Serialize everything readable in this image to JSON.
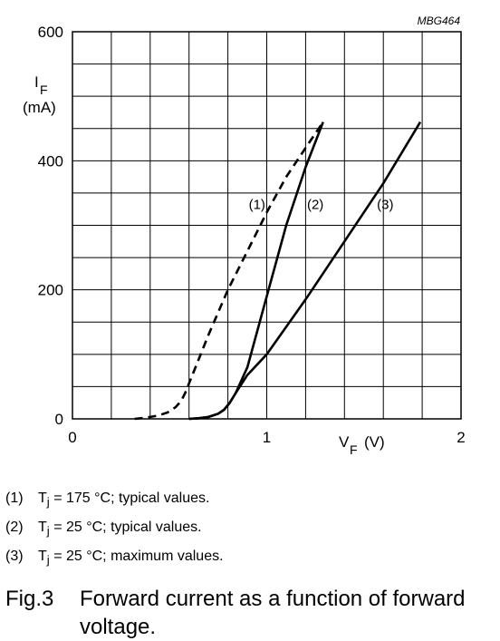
{
  "chart_data": {
    "type": "line",
    "code": "MBG464",
    "x_ticks": [
      "0",
      "1",
      "2"
    ],
    "y_ticks": [
      "0",
      "200",
      "400",
      "600"
    ],
    "xlim": [
      0,
      2
    ],
    "ylim": [
      0,
      600
    ],
    "x_grid_step": 0.2,
    "y_grid_step": 50,
    "grid": true,
    "ylabel": {
      "main": "I",
      "sub": "F",
      "unit": "(mA)"
    },
    "xlabel": {
      "main": "V",
      "sub": "F",
      "unit": "(V)"
    },
    "series": [
      {
        "name": "(1)",
        "style": "dashed",
        "x": [
          0.32,
          0.38,
          0.44,
          0.49,
          0.53,
          0.56,
          0.58,
          0.62,
          0.7,
          0.8,
          0.9,
          1.0,
          1.1,
          1.2,
          1.29
        ],
        "y": [
          0,
          2,
          5,
          10,
          18,
          28,
          40,
          70,
          130,
          200,
          260,
          320,
          375,
          420,
          460
        ]
      },
      {
        "name": "(2)",
        "style": "solid",
        "x": [
          0.6,
          0.65,
          0.7,
          0.75,
          0.78,
          0.81,
          0.84,
          0.9,
          1.0,
          1.1,
          1.2,
          1.29
        ],
        "y": [
          0,
          1,
          3,
          8,
          14,
          25,
          40,
          80,
          190,
          300,
          390,
          460
        ]
      },
      {
        "name": "(3)",
        "style": "solid",
        "x": [
          0.6,
          0.65,
          0.7,
          0.75,
          0.78,
          0.81,
          0.84,
          0.9,
          1.0,
          1.2,
          1.4,
          1.6,
          1.79
        ],
        "y": [
          0,
          1,
          3,
          8,
          14,
          25,
          40,
          68,
          100,
          185,
          275,
          365,
          460
        ]
      }
    ],
    "curve_labels": [
      {
        "text": "(1)",
        "x": 0.95,
        "y": 325
      },
      {
        "text": "(2)",
        "x": 1.25,
        "y": 325
      },
      {
        "text": "(3)",
        "x": 1.61,
        "y": 325
      }
    ]
  },
  "notes": [
    {
      "num": "(1)",
      "pre": "T",
      "sub": "j",
      "post": " = 175 °C; typical values."
    },
    {
      "num": "(2)",
      "pre": "T",
      "sub": "j",
      "post": " = 25 °C; typical values."
    },
    {
      "num": "(3)",
      "pre": "T",
      "sub": "j",
      "post": " = 25 °C; maximum values."
    }
  ],
  "caption": {
    "fig": "Fig.3",
    "text": "Forward current as a function of forward voltage."
  }
}
